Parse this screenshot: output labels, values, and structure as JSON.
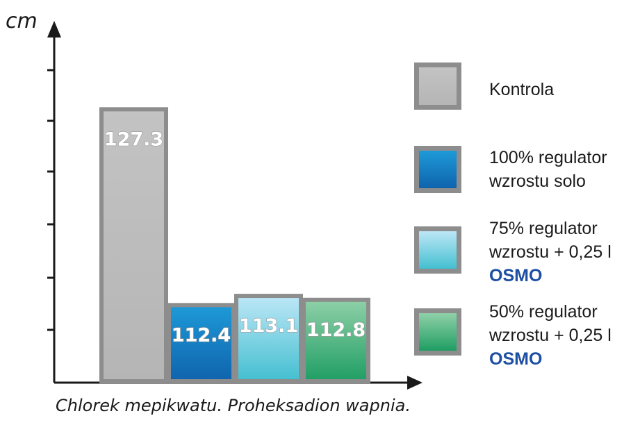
{
  "chart_data": {
    "type": "bar",
    "ylabel": "cm",
    "xlabel": "Chlorek mepikwatu. Proheksadion wapnia.",
    "categories": [
      "Kontrola",
      "100% regulator wzrostu solo",
      "75% regulator wzrostu + 0,25 l OSMO",
      "50% regulator wzrostu + 0,25 l OSMO"
    ],
    "values": [
      127.3,
      112.4,
      113.1,
      112.8
    ],
    "value_labels": [
      "127.3",
      "112.4",
      "113.1",
      "112.8"
    ],
    "ylim": [
      106.5,
      133.5
    ],
    "grid": false,
    "legend_placement": "right"
  },
  "legend": [
    {
      "line1": "Kontrola",
      "line2": "",
      "brand": "",
      "color_top": "#c3c3c3",
      "color_bottom": "#b5b5b5"
    },
    {
      "line1": "100% regulator",
      "line2": "wzrostu solo",
      "brand": "",
      "color_top": "#1e9ad8",
      "color_bottom": "#0f63ad"
    },
    {
      "line1": "75% regulator",
      "line2": "wzrostu + 0,25 l",
      "brand": "OSMO",
      "color_top": "#bde7f7",
      "color_bottom": "#43bfd0"
    },
    {
      "line1": "50% regulator",
      "line2": "wzrostu + 0,25 l",
      "brand": "OSMO",
      "color_top": "#8fd0a8",
      "color_bottom": "#1f9e63"
    }
  ],
  "colors": {
    "axis": "#1a1a1a",
    "bar_border": "#8d8d8d",
    "value_text": "#ffffff"
  }
}
